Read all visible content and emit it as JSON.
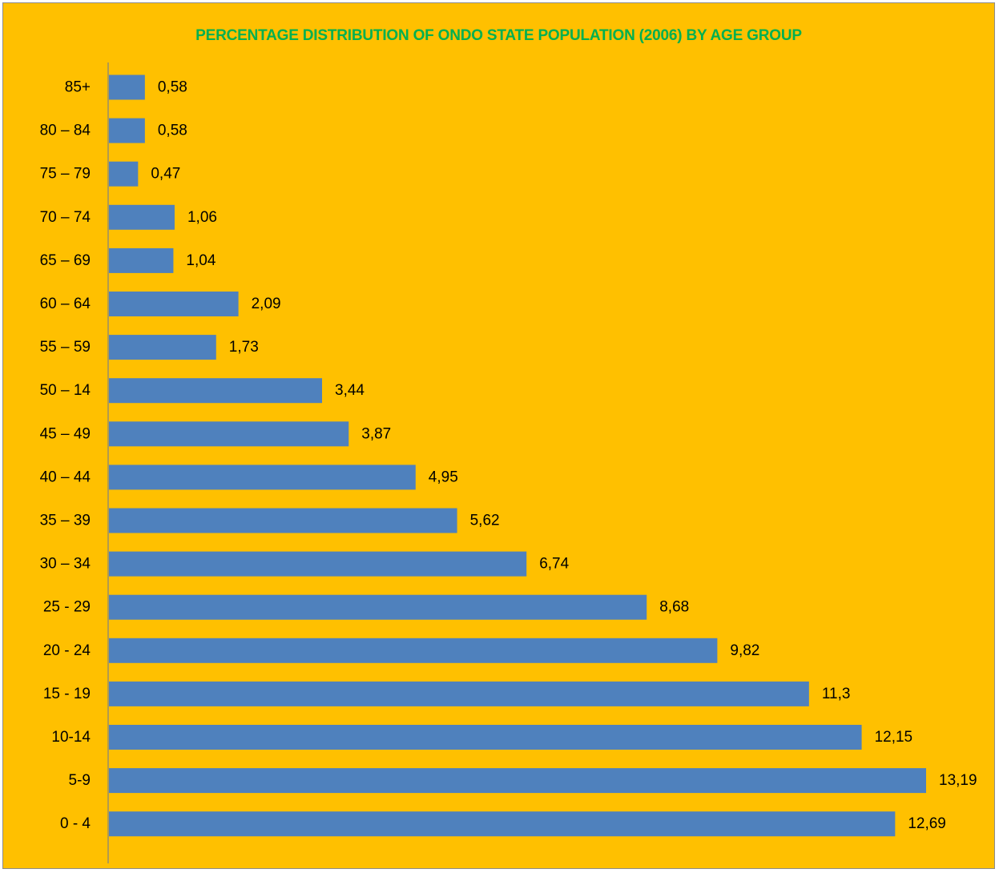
{
  "chart_data": {
    "type": "bar",
    "orientation": "horizontal",
    "title": "PERCENTAGE DISTRIBUTION OF ONDO STATE POPULATION (2006) BY AGE GROUP",
    "categories": [
      "85+",
      "80 – 84",
      "75 – 79",
      "70 – 74",
      "65 – 69",
      "60 – 64",
      "55 – 59",
      "50 – 14",
      "45 – 49",
      "40 – 44",
      "35 – 39",
      "30 – 34",
      "25 - 29",
      "20 - 24",
      "15 - 19",
      "10-14",
      "5-9",
      "0 - 4"
    ],
    "values": [
      0.58,
      0.58,
      0.47,
      1.06,
      1.04,
      2.09,
      1.73,
      3.44,
      3.87,
      4.95,
      5.62,
      6.74,
      8.68,
      9.82,
      11.3,
      12.15,
      13.19,
      12.69
    ],
    "value_labels": [
      "0,58",
      "0,58",
      "0,47",
      "1,06",
      "1,04",
      "2,09",
      "1,73",
      "3,44",
      "3,87",
      "4,95",
      "5,62",
      "6,74",
      "8,68",
      "9,82",
      "11,3",
      "12,15",
      "13,19",
      "12,69"
    ],
    "xlim": [
      0,
      13.19
    ],
    "grid": false,
    "legend": "none",
    "value_axis_visible": false
  },
  "colors": {
    "background": "#FFC000",
    "bar": "#4F81BD",
    "title": "#00B050",
    "axis": "#808080"
  }
}
